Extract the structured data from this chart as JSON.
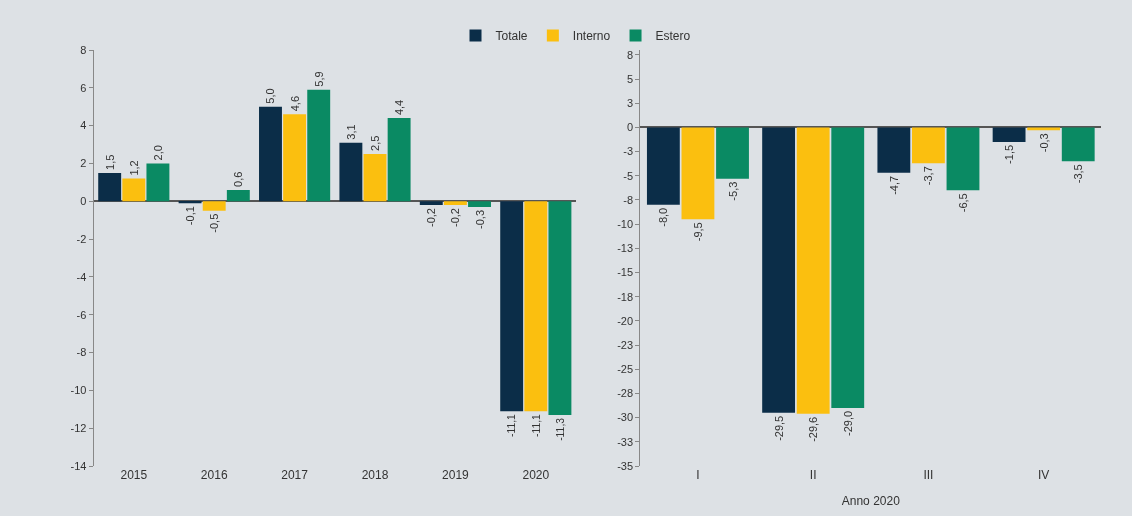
{
  "chart_data": [
    {
      "type": "bar",
      "categories": [
        "2015",
        "2016",
        "2017",
        "2018",
        "2019",
        "2020"
      ],
      "legend": "top",
      "ylim": [
        -14,
        8
      ],
      "yticks": [
        -14,
        -12,
        -10,
        -8,
        -6,
        -4,
        -2,
        0,
        2,
        4,
        6,
        8
      ],
      "series": [
        {
          "name": "Totale",
          "color": "#0b2d48",
          "values": [
            1.5,
            -0.1,
            5.0,
            3.1,
            -0.2,
            -11.1
          ],
          "value_labels": [
            "1,5",
            "-0,1",
            "5,0",
            "3,1",
            "-0,2",
            "-11,1"
          ]
        },
        {
          "name": "Interno",
          "color": "#fbbf0f",
          "values": [
            1.2,
            -0.5,
            4.6,
            2.5,
            -0.2,
            -11.1
          ],
          "value_labels": [
            "1,2",
            "-0,5",
            "4,6",
            "2,5",
            "-0,2",
            "-11,1"
          ]
        },
        {
          "name": "Estero",
          "color": "#0a8a63",
          "values": [
            2.0,
            0.6,
            5.9,
            4.4,
            -0.3,
            -11.3
          ],
          "value_labels": [
            "2,0",
            "0,6",
            "5,9",
            "4,4",
            "-0,3",
            "-11,3"
          ]
        }
      ]
    },
    {
      "type": "bar",
      "categories": [
        "I",
        "II",
        "III",
        "IV"
      ],
      "xlabel": "Anno 2020",
      "legend": false,
      "ylim": [
        -35,
        8
      ],
      "yticks": [
        {
          "value": 7.5,
          "label": "8"
        },
        5,
        {
          "value": 2.5,
          "label": "3"
        },
        0,
        {
          "value": -2.5,
          "label": "-3"
        },
        -5,
        {
          "value": -7.5,
          "label": "-8"
        },
        -10,
        {
          "value": -12.5,
          "label": "-13"
        },
        -15,
        {
          "value": -17.5,
          "label": "-18"
        },
        -20,
        {
          "value": -22.5,
          "label": "-23"
        },
        -25,
        {
          "value": -27.5,
          "label": "-28"
        },
        -30,
        {
          "value": -32.5,
          "label": "-33"
        },
        -35
      ],
      "series": [
        {
          "color": "#0b2d48",
          "values": [
            -8.0,
            -29.5,
            -4.7,
            -1.5
          ],
          "value_labels": [
            "-8,0",
            "-29,5",
            "-4,7",
            "-1,5"
          ]
        },
        {
          "color": "#fbbf0f",
          "values": [
            -9.5,
            -29.6,
            -3.7,
            -0.3
          ],
          "value_labels": [
            "-9,5",
            "-29,6",
            "-3,7",
            "-0,3"
          ]
        },
        {
          "color": "#0a8a63",
          "values": [
            -5.3,
            -29.0,
            -6.5,
            -3.5
          ],
          "value_labels": [
            "-5,3",
            "-29,0",
            "-6,5",
            "-3,5"
          ]
        }
      ]
    }
  ]
}
